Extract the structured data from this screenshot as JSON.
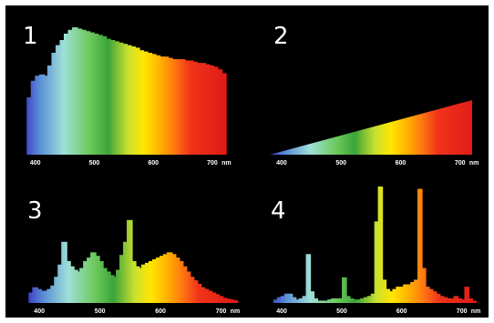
{
  "chart_data": [
    {
      "type": "bar",
      "panel_label": "1",
      "x_unit": "nm",
      "x_ticks": [
        400,
        500,
        600,
        700
      ],
      "xlim": [
        380,
        720
      ],
      "ylim": [
        0,
        100
      ],
      "series": [
        {
          "x": [
            385,
            392,
            399,
            406,
            413,
            420,
            427,
            434,
            441,
            448,
            455,
            462,
            469,
            476,
            483,
            490,
            497,
            504,
            511,
            518,
            525,
            532,
            539,
            546,
            553,
            560,
            567,
            574,
            581,
            588,
            595,
            602,
            609,
            616,
            623,
            630,
            637,
            644,
            651,
            658,
            665,
            672,
            679,
            686,
            693,
            700,
            707,
            714
          ],
          "values": [
            45,
            58,
            62,
            63,
            62,
            70,
            80,
            86,
            90,
            95,
            98,
            100,
            99,
            98,
            97,
            96,
            95,
            94,
            93,
            91,
            90,
            89,
            88,
            87,
            86,
            85,
            84,
            82,
            81,
            80,
            79,
            78,
            77,
            77,
            76,
            75,
            75,
            75,
            74,
            74,
            73,
            72,
            72,
            71,
            70,
            69,
            67,
            64
          ]
        }
      ]
    },
    {
      "type": "area",
      "panel_label": "2",
      "x_unit": "nm",
      "x_ticks": [
        400,
        500,
        600,
        700
      ],
      "xlim": [
        380,
        720
      ],
      "ylim": [
        0,
        100
      ],
      "series": [
        {
          "x": [
            380,
            720
          ],
          "values": [
            0,
            100
          ]
        }
      ]
    },
    {
      "type": "bar",
      "panel_label": "3",
      "x_unit": "nm",
      "x_ticks": [
        400,
        500,
        600,
        700
      ],
      "xlim": [
        380,
        720
      ],
      "ylim": [
        0,
        100
      ],
      "series": [
        {
          "x": [
            382,
            388,
            394,
            400,
            406,
            412,
            418,
            424,
            430,
            436,
            442,
            448,
            454,
            460,
            466,
            472,
            478,
            484,
            490,
            496,
            502,
            508,
            514,
            520,
            526,
            532,
            538,
            544,
            550,
            556,
            562,
            568,
            574,
            580,
            586,
            592,
            598,
            604,
            610,
            616,
            622,
            628,
            634,
            640,
            646,
            652,
            658,
            664,
            670,
            676,
            682,
            688,
            694,
            700,
            706,
            712,
            718
          ],
          "values": [
            12,
            18,
            16,
            14,
            14,
            16,
            20,
            30,
            44,
            70,
            48,
            42,
            38,
            36,
            40,
            48,
            52,
            58,
            54,
            48,
            40,
            36,
            32,
            30,
            38,
            55,
            70,
            95,
            48,
            42,
            40,
            44,
            46,
            48,
            50,
            52,
            54,
            56,
            58,
            56,
            52,
            48,
            42,
            36,
            30,
            26,
            22,
            18,
            16,
            14,
            12,
            10,
            8,
            6,
            5,
            4,
            3
          ]
        }
      ]
    },
    {
      "type": "bar",
      "panel_label": "4",
      "x_unit": "nm",
      "x_ticks": [
        400,
        500,
        600,
        700
      ],
      "xlim": [
        380,
        720
      ],
      "ylim": [
        0,
        100
      ],
      "series": [
        {
          "x": [
            380,
            386,
            392,
            398,
            404,
            410,
            416,
            422,
            428,
            434,
            440,
            446,
            452,
            458,
            464,
            470,
            476,
            482,
            488,
            494,
            500,
            506,
            512,
            518,
            524,
            530,
            536,
            542,
            548,
            554,
            560,
            566,
            572,
            578,
            584,
            590,
            596,
            602,
            608,
            614,
            620,
            626,
            632,
            638,
            644,
            650,
            656,
            662,
            668,
            674,
            680,
            686,
            692,
            698,
            704,
            710,
            716
          ],
          "values": [
            0,
            3,
            5,
            6,
            8,
            8,
            5,
            3,
            4,
            6,
            42,
            10,
            4,
            2,
            2,
            2,
            3,
            4,
            4,
            4,
            22,
            6,
            4,
            3,
            3,
            4,
            5,
            6,
            8,
            70,
            100,
            20,
            12,
            10,
            12,
            14,
            14,
            16,
            16,
            18,
            20,
            98,
            30,
            14,
            12,
            10,
            8,
            6,
            5,
            4,
            4,
            6,
            4,
            3,
            14,
            4,
            2
          ]
        }
      ]
    }
  ]
}
